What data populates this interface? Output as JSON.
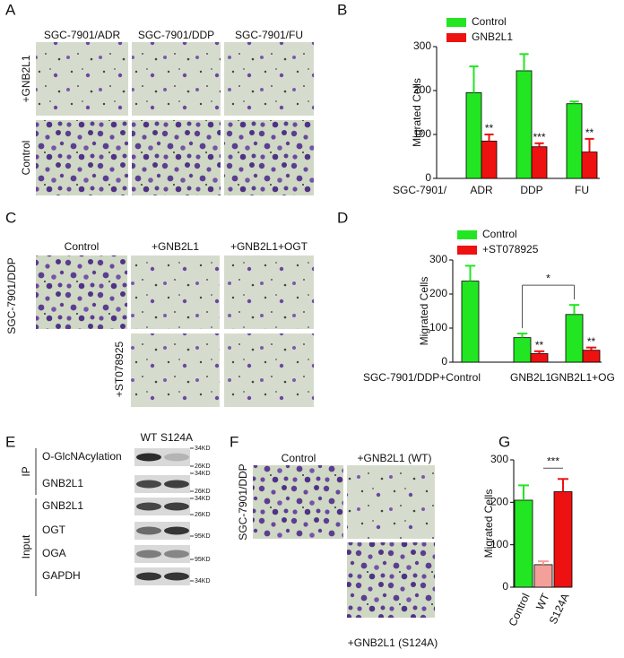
{
  "panel_labels": [
    "A",
    "B",
    "C",
    "D",
    "E",
    "F",
    "G"
  ],
  "panel_a": {
    "columns": [
      "SGC-7901/ADR",
      "SGC-7901/DDP",
      "SGC-7901/FU"
    ],
    "rows": [
      "+GNB2L1",
      "Control"
    ]
  },
  "panel_c": {
    "columns": [
      "Control",
      "+GNB2L1",
      "+GNB2L1+OGT"
    ],
    "side_label": "SGC-7901/DDP",
    "row_label": "+ST078925"
  },
  "panel_e": {
    "lanes": [
      "WT",
      "S124A"
    ],
    "groups": [
      "IP",
      "Input"
    ],
    "rows": [
      "O-GlcNAcylation",
      "GNB2L1",
      "GNB2L1",
      "OGT",
      "OGA",
      "GAPDH"
    ],
    "markers": [
      "34KD",
      "26KD",
      "34KD",
      "26KD",
      "34KD",
      "26KD",
      "95KD",
      "95KD",
      "34KD"
    ]
  },
  "panel_f": {
    "columns": [
      "Control",
      "+GNB2L1 (WT)"
    ],
    "bottom_label": "+GNB2L1 (S124A)",
    "side_label": "SGC-7901/DDP"
  },
  "chart_data": [
    {
      "type": "bar",
      "y_label": "Migrated Cells",
      "x_label": "SGC-7901/",
      "categories": [
        "ADR",
        "DDP",
        "FU"
      ],
      "series": [
        {
          "name": "Control",
          "color": "#22e622",
          "values": [
            195,
            245,
            170
          ],
          "errors": [
            60,
            38,
            5
          ]
        },
        {
          "name": "GNB2L1",
          "color": "#ee1111",
          "values": [
            85,
            72,
            60
          ],
          "errors": [
            15,
            8,
            30
          ],
          "sig_labels": [
            "**",
            "***",
            "**"
          ]
        }
      ],
      "ylim": [
        0,
        300
      ],
      "yticks": [
        0,
        100,
        200,
        300
      ]
    },
    {
      "type": "bar",
      "y_label": "Migrated Cells",
      "categories": [
        "SGC-7901/DDP+Control",
        "GNB2L1",
        "GNB2L1+OG"
      ],
      "series": [
        {
          "name": "Control",
          "color": "#22e622",
          "values": [
            238,
            72,
            140
          ],
          "errors": [
            45,
            12,
            28
          ]
        },
        {
          "name": "+ST078925",
          "color": "#ee1111",
          "values": [
            null,
            25,
            35
          ],
          "errors": [
            null,
            7,
            8
          ],
          "sig_labels": [
            null,
            "**",
            "**"
          ]
        }
      ],
      "brackets": [
        {
          "between": [
            "GNB2L1",
            "GNB2L1+OG"
          ],
          "label": "*"
        }
      ],
      "ylim": [
        0,
        300
      ],
      "yticks": [
        0,
        100,
        200,
        300
      ]
    },
    {
      "type": "bar",
      "y_label": "Migrated Cells",
      "categories": [
        "Control",
        "WT",
        "S124A"
      ],
      "series": [
        {
          "colors": [
            "#22e622",
            "#f4a09a",
            "#ee1111"
          ],
          "values": [
            205,
            53,
            225
          ],
          "errors": [
            35,
            8,
            30
          ]
        }
      ],
      "brackets": [
        {
          "between": [
            "WT",
            "S124A"
          ],
          "label": "***"
        }
      ],
      "ylim": [
        0,
        300
      ],
      "yticks": [
        0,
        100,
        200,
        300
      ]
    }
  ]
}
